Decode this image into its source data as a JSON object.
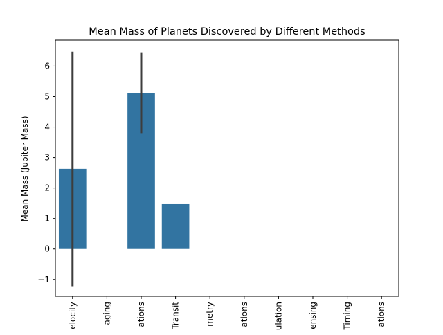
{
  "chart_data": {
    "type": "bar",
    "title": "Mean Mass of Planets Discovered by Different Methods",
    "xlabel": "",
    "ylabel": "Mean Mass (Jupiter Mass)",
    "categories": [
      "elocity",
      "aging",
      "ations",
      "Transit",
      "metry",
      "ations",
      "ulation",
      "ensing",
      "Timing",
      "ations"
    ],
    "values": [
      2.63,
      null,
      5.12,
      1.47,
      null,
      null,
      null,
      null,
      null,
      null
    ],
    "error_bars": [
      [
        -1.22,
        6.47
      ],
      null,
      [
        3.8,
        6.45
      ],
      null,
      null,
      null,
      null,
      null,
      null,
      null
    ],
    "ylim": [
      -1.55,
      6.85
    ],
    "yticks": [
      -1,
      0,
      1,
      2,
      3,
      4,
      5,
      6
    ],
    "grid": false,
    "bar_color": "#3274a1",
    "error_color": "#3d3d3d"
  }
}
